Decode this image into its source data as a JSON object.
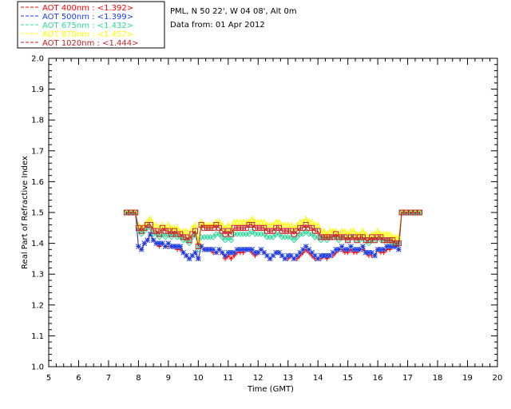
{
  "chart_data": {
    "type": "line",
    "title": "PML, N 50 22', W 04 08', Alt 0m",
    "subtitle": "Data from: 01 Apr 2012",
    "xlabel": "Time (GMT)",
    "ylabel": "Real Part of Refractive Index",
    "xlim": [
      5,
      20
    ],
    "ylim": [
      1.0,
      2.0
    ],
    "x_ticks": [
      "5",
      "6",
      "7",
      "8",
      "9",
      "10",
      "11",
      "12",
      "13",
      "14",
      "15",
      "16",
      "17",
      "18",
      "19",
      "20"
    ],
    "y_ticks": [
      "1.0",
      "1.1",
      "1.2",
      "1.3",
      "1.4",
      "1.5",
      "1.6",
      "1.7",
      "1.8",
      "1.9",
      "2.0"
    ],
    "grid": false,
    "legend_position": "top-left",
    "x": [
      7.6,
      7.75,
      7.9,
      8.0,
      8.1,
      8.2,
      8.3,
      8.4,
      8.5,
      8.6,
      8.7,
      8.8,
      8.9,
      9.0,
      9.1,
      9.2,
      9.3,
      9.4,
      9.5,
      9.6,
      9.7,
      9.8,
      9.9,
      10.0,
      10.1,
      10.2,
      10.3,
      10.4,
      10.5,
      10.6,
      10.7,
      10.8,
      10.9,
      11.0,
      11.1,
      11.2,
      11.3,
      11.4,
      11.5,
      11.6,
      11.7,
      11.8,
      11.9,
      12.0,
      12.1,
      12.2,
      12.3,
      12.4,
      12.5,
      12.6,
      12.7,
      12.8,
      12.9,
      13.0,
      13.1,
      13.2,
      13.3,
      13.4,
      13.5,
      13.6,
      13.7,
      13.8,
      13.9,
      14.0,
      14.1,
      14.2,
      14.3,
      14.4,
      14.5,
      14.6,
      14.7,
      14.8,
      14.9,
      15.0,
      15.1,
      15.2,
      15.3,
      15.4,
      15.5,
      15.6,
      15.7,
      15.8,
      15.9,
      16.0,
      16.1,
      16.2,
      16.3,
      16.4,
      16.5,
      16.6,
      16.7,
      16.8,
      16.95,
      17.1,
      17.25,
      17.4
    ],
    "series": [
      {
        "name": "AOT  400nm",
        "label": "AOT  400nm : <1.392>",
        "color": "#ff0000",
        "marker": "plus",
        "values": [
          1.5,
          1.5,
          1.5,
          1.39,
          1.38,
          1.4,
          1.41,
          1.43,
          1.41,
          1.4,
          1.39,
          1.4,
          1.39,
          1.39,
          1.39,
          1.39,
          1.38,
          1.38,
          1.37,
          1.36,
          1.35,
          1.36,
          1.37,
          1.35,
          1.39,
          1.38,
          1.38,
          1.38,
          1.37,
          1.37,
          1.38,
          1.37,
          1.35,
          1.36,
          1.35,
          1.36,
          1.37,
          1.37,
          1.37,
          1.38,
          1.38,
          1.37,
          1.36,
          1.37,
          1.38,
          1.37,
          1.36,
          1.35,
          1.36,
          1.37,
          1.37,
          1.36,
          1.35,
          1.35,
          1.36,
          1.35,
          1.35,
          1.36,
          1.37,
          1.38,
          1.37,
          1.36,
          1.35,
          1.35,
          1.35,
          1.36,
          1.35,
          1.36,
          1.36,
          1.37,
          1.38,
          1.38,
          1.37,
          1.37,
          1.38,
          1.37,
          1.37,
          1.38,
          1.38,
          1.37,
          1.36,
          1.36,
          1.36,
          1.38,
          1.37,
          1.37,
          1.38,
          1.38,
          1.39,
          1.39,
          1.38,
          1.5,
          1.5,
          1.5,
          1.5,
          1.5
        ]
      },
      {
        "name": "AOT  500nm",
        "label": "AOT  500nm : <1.399>",
        "color": "#1a3fe6",
        "marker": "star",
        "values": [
          1.5,
          1.5,
          1.5,
          1.39,
          1.38,
          1.4,
          1.41,
          1.43,
          1.41,
          1.4,
          1.4,
          1.4,
          1.39,
          1.4,
          1.39,
          1.39,
          1.39,
          1.39,
          1.37,
          1.36,
          1.35,
          1.36,
          1.37,
          1.35,
          1.39,
          1.38,
          1.38,
          1.38,
          1.38,
          1.37,
          1.38,
          1.37,
          1.36,
          1.37,
          1.37,
          1.37,
          1.38,
          1.38,
          1.38,
          1.38,
          1.38,
          1.38,
          1.37,
          1.37,
          1.38,
          1.37,
          1.36,
          1.35,
          1.36,
          1.37,
          1.37,
          1.36,
          1.35,
          1.36,
          1.36,
          1.35,
          1.36,
          1.37,
          1.38,
          1.39,
          1.38,
          1.37,
          1.36,
          1.35,
          1.36,
          1.36,
          1.36,
          1.36,
          1.37,
          1.38,
          1.38,
          1.39,
          1.38,
          1.38,
          1.39,
          1.38,
          1.38,
          1.38,
          1.39,
          1.37,
          1.37,
          1.37,
          1.36,
          1.38,
          1.38,
          1.38,
          1.39,
          1.39,
          1.39,
          1.39,
          1.38,
          1.5,
          1.5,
          1.5,
          1.5,
          1.5
        ]
      },
      {
        "name": "AOT  675nm",
        "label": "AOT  675nm : <1.432>",
        "color": "#2ed99a",
        "marker": "diamond",
        "values": [
          1.5,
          1.5,
          1.5,
          1.44,
          1.43,
          1.44,
          1.45,
          1.45,
          1.43,
          1.43,
          1.42,
          1.43,
          1.42,
          1.43,
          1.42,
          1.43,
          1.42,
          1.42,
          1.41,
          1.41,
          1.4,
          1.42,
          1.43,
          1.38,
          1.42,
          1.42,
          1.42,
          1.42,
          1.42,
          1.43,
          1.43,
          1.42,
          1.41,
          1.42,
          1.41,
          1.43,
          1.43,
          1.43,
          1.43,
          1.43,
          1.43,
          1.44,
          1.43,
          1.43,
          1.43,
          1.43,
          1.42,
          1.42,
          1.42,
          1.43,
          1.43,
          1.42,
          1.42,
          1.42,
          1.42,
          1.41,
          1.42,
          1.43,
          1.43,
          1.44,
          1.43,
          1.43,
          1.42,
          1.42,
          1.41,
          1.42,
          1.41,
          1.42,
          1.42,
          1.42,
          1.41,
          1.42,
          1.42,
          1.41,
          1.42,
          1.42,
          1.41,
          1.41,
          1.42,
          1.41,
          1.4,
          1.41,
          1.41,
          1.42,
          1.41,
          1.41,
          1.41,
          1.41,
          1.4,
          1.4,
          1.4,
          1.5,
          1.5,
          1.5,
          1.5,
          1.5
        ]
      },
      {
        "name": "AOT  870nm",
        "label": "AOT  870nm : <1.457>",
        "color": "#ffff00",
        "marker": "triangle",
        "values": [
          1.5,
          1.5,
          1.5,
          1.46,
          1.45,
          1.46,
          1.47,
          1.48,
          1.46,
          1.46,
          1.45,
          1.46,
          1.45,
          1.46,
          1.45,
          1.45,
          1.45,
          1.44,
          1.44,
          1.44,
          1.43,
          1.45,
          1.46,
          1.41,
          1.47,
          1.46,
          1.46,
          1.46,
          1.46,
          1.47,
          1.47,
          1.46,
          1.45,
          1.46,
          1.45,
          1.47,
          1.47,
          1.47,
          1.47,
          1.47,
          1.47,
          1.48,
          1.47,
          1.47,
          1.47,
          1.47,
          1.46,
          1.46,
          1.46,
          1.47,
          1.47,
          1.46,
          1.46,
          1.46,
          1.46,
          1.45,
          1.46,
          1.47,
          1.47,
          1.48,
          1.47,
          1.47,
          1.46,
          1.46,
          1.44,
          1.44,
          1.43,
          1.44,
          1.44,
          1.44,
          1.43,
          1.44,
          1.44,
          1.43,
          1.44,
          1.44,
          1.43,
          1.43,
          1.44,
          1.43,
          1.42,
          1.43,
          1.43,
          1.44,
          1.43,
          1.43,
          1.43,
          1.43,
          1.42,
          1.42,
          1.42,
          1.5,
          1.5,
          1.5,
          1.5,
          1.5
        ]
      },
      {
        "name": "AOT 1020nm",
        "label": "AOT 1020nm : <1.444>",
        "color": "#c82020",
        "marker": "square",
        "values": [
          1.5,
          1.5,
          1.5,
          1.45,
          1.44,
          1.45,
          1.46,
          1.46,
          1.44,
          1.44,
          1.43,
          1.45,
          1.44,
          1.44,
          1.43,
          1.44,
          1.43,
          1.43,
          1.42,
          1.42,
          1.41,
          1.43,
          1.44,
          1.39,
          1.46,
          1.45,
          1.45,
          1.45,
          1.45,
          1.46,
          1.45,
          1.44,
          1.43,
          1.44,
          1.43,
          1.45,
          1.45,
          1.45,
          1.45,
          1.45,
          1.46,
          1.46,
          1.45,
          1.45,
          1.45,
          1.45,
          1.44,
          1.44,
          1.44,
          1.45,
          1.45,
          1.44,
          1.44,
          1.44,
          1.44,
          1.43,
          1.44,
          1.45,
          1.45,
          1.46,
          1.45,
          1.45,
          1.44,
          1.44,
          1.42,
          1.42,
          1.42,
          1.42,
          1.42,
          1.43,
          1.42,
          1.42,
          1.42,
          1.41,
          1.42,
          1.42,
          1.41,
          1.42,
          1.42,
          1.41,
          1.41,
          1.42,
          1.41,
          1.42,
          1.42,
          1.41,
          1.41,
          1.41,
          1.41,
          1.4,
          1.4,
          1.5,
          1.5,
          1.5,
          1.5,
          1.5
        ]
      }
    ]
  }
}
